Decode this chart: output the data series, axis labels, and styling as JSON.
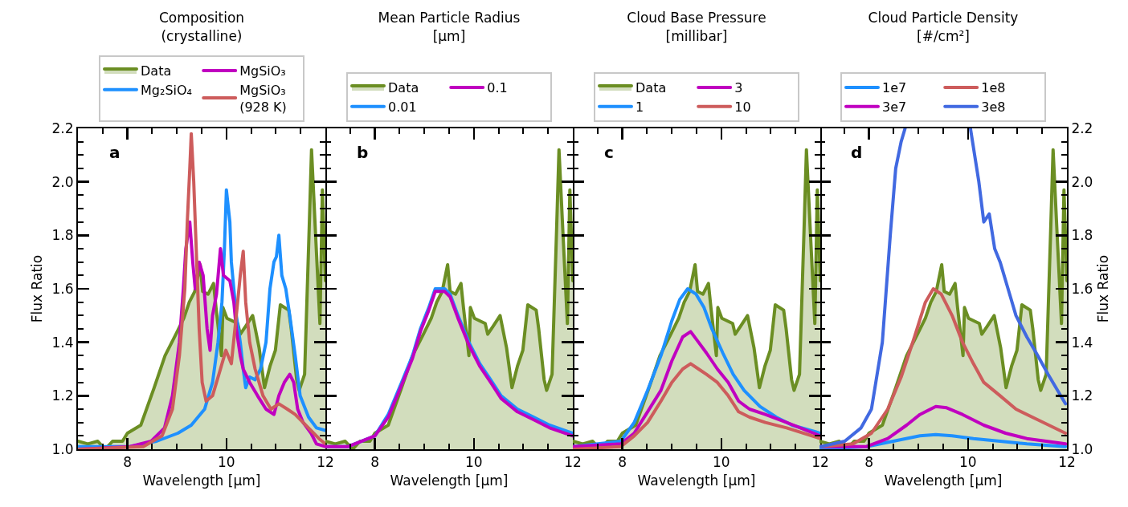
{
  "chart_data": [
    {
      "type": "line",
      "title": "Composition\n(crystalline)",
      "xlabel": "Wavelength [μm]",
      "ylabel": "Flux Ratio",
      "annotations": [
        "a"
      ],
      "legend": "top",
      "grid": false,
      "xlim": [
        7,
        12
      ],
      "ylim": [
        1,
        2.2
      ],
      "xticks": [
        {
          "value": 7.5,
          "label": null
        },
        8,
        {
          "value": 8.5,
          "label": null
        },
        {
          "value": 9,
          "label": null
        },
        {
          "value": 9.5,
          "label": null
        },
        10,
        {
          "value": 10.5,
          "label": null
        },
        {
          "value": 11,
          "label": null
        },
        {
          "value": 11.5,
          "label": null
        },
        12
      ],
      "yticks": [
        {
          "value": 1,
          "label": "1.0"
        },
        {
          "value": 1.05,
          "label": null
        },
        {
          "value": 1.1,
          "label": null
        },
        {
          "value": 1.15,
          "label": null
        },
        1.2,
        {
          "value": 1.25,
          "label": null
        },
        {
          "value": 1.3,
          "label": null
        },
        {
          "value": 1.35,
          "label": null
        },
        1.4,
        {
          "value": 1.45,
          "label": null
        },
        {
          "value": 1.5,
          "label": null
        },
        {
          "value": 1.55,
          "label": null
        },
        1.6,
        {
          "value": 1.65,
          "label": null
        },
        {
          "value": 1.7,
          "label": null
        },
        {
          "value": 1.75,
          "label": null
        },
        1.8,
        {
          "value": 1.85,
          "label": null
        },
        {
          "value": 1.9,
          "label": null
        },
        {
          "value": 1.95,
          "label": null
        },
        {
          "value": 2,
          "label": "2.0"
        },
        {
          "value": 2.05,
          "label": null
        },
        {
          "value": 2.1,
          "label": null
        },
        {
          "value": 2.15,
          "label": null
        },
        2.2
      ],
      "series": [
        {
          "name": "Data",
          "type": "area",
          "color": "#6b8e23",
          "x": [
            7.0,
            7.2,
            7.4,
            7.55,
            7.7,
            7.9,
            8.0,
            8.27,
            8.54,
            8.76,
            8.98,
            9.14,
            9.25,
            9.36,
            9.47,
            9.52,
            9.63,
            9.74,
            9.79,
            9.9,
            9.93,
            10.01,
            10.23,
            10.28,
            10.39,
            10.53,
            10.66,
            10.77,
            10.88,
            10.99,
            11.09,
            11.26,
            11.31,
            11.42,
            11.47,
            11.58,
            11.67,
            11.72,
            11.8,
            11.89,
            11.94,
            12.0
          ],
          "values": [
            1.03,
            1.02,
            1.03,
            1.0,
            1.03,
            1.03,
            1.06,
            1.09,
            1.23,
            1.35,
            1.43,
            1.49,
            1.55,
            1.59,
            1.69,
            1.59,
            1.58,
            1.62,
            1.53,
            1.35,
            1.53,
            1.49,
            1.47,
            1.43,
            1.46,
            1.5,
            1.38,
            1.23,
            1.31,
            1.37,
            1.54,
            1.52,
            1.45,
            1.26,
            1.22,
            1.28,
            1.81,
            2.12,
            1.81,
            1.47,
            1.97,
            1.63
          ]
        },
        {
          "name": "Mg₂SiO₄",
          "color": "#1e90ff",
          "x": [
            7.0,
            8.05,
            8.59,
            9.02,
            9.29,
            9.56,
            9.72,
            9.83,
            9.91,
            9.96,
            10.0,
            10.07,
            10.1,
            10.15,
            10.2,
            10.28,
            10.34,
            10.39,
            10.47,
            10.58,
            10.69,
            10.8,
            10.88,
            10.96,
            11.01,
            11.06,
            11.12,
            11.2,
            11.28,
            11.39,
            11.49,
            11.66,
            11.82,
            12.0
          ],
          "values": [
            1.01,
            1.01,
            1.03,
            1.06,
            1.09,
            1.15,
            1.25,
            1.4,
            1.55,
            1.75,
            1.97,
            1.85,
            1.7,
            1.6,
            1.5,
            1.4,
            1.3,
            1.23,
            1.27,
            1.26,
            1.3,
            1.4,
            1.6,
            1.7,
            1.72,
            1.8,
            1.65,
            1.6,
            1.5,
            1.35,
            1.2,
            1.12,
            1.08,
            1.07
          ]
        },
        {
          "name": "MgSiO₃",
          "color": "#c000c0",
          "x": [
            7.0,
            8.05,
            8.48,
            8.75,
            8.91,
            9.05,
            9.13,
            9.18,
            9.26,
            9.32,
            9.37,
            9.45,
            9.53,
            9.61,
            9.67,
            9.72,
            9.8,
            9.88,
            9.94,
            10.07,
            10.15,
            10.2,
            10.28,
            10.34,
            10.47,
            10.63,
            10.8,
            10.96,
            11.06,
            11.17,
            11.28,
            11.36,
            11.44,
            11.55,
            11.71,
            11.82,
            12.0
          ],
          "values": [
            1.0,
            1.01,
            1.03,
            1.08,
            1.2,
            1.4,
            1.6,
            1.75,
            1.85,
            1.7,
            1.6,
            1.7,
            1.65,
            1.45,
            1.37,
            1.5,
            1.58,
            1.75,
            1.65,
            1.63,
            1.55,
            1.45,
            1.35,
            1.3,
            1.25,
            1.2,
            1.15,
            1.13,
            1.2,
            1.25,
            1.28,
            1.25,
            1.15,
            1.1,
            1.06,
            1.02,
            1.01
          ]
        },
        {
          "name": "MgSiO₃\n(928 K)",
          "color": "#cd5c5c",
          "x": [
            7.0,
            8.32,
            8.7,
            8.91,
            9.05,
            9.16,
            9.21,
            9.26,
            9.29,
            9.34,
            9.4,
            9.45,
            9.51,
            9.59,
            9.72,
            9.88,
            9.99,
            10.1,
            10.2,
            10.28,
            10.34,
            10.39,
            10.47,
            10.58,
            10.74,
            10.9,
            11.06,
            11.23,
            11.39,
            11.55,
            11.71,
            11.87,
            12.0
          ],
          "values": [
            1.0,
            1.01,
            1.05,
            1.15,
            1.35,
            1.6,
            1.85,
            2.05,
            2.18,
            2.0,
            1.7,
            1.45,
            1.25,
            1.18,
            1.2,
            1.3,
            1.37,
            1.32,
            1.5,
            1.65,
            1.74,
            1.55,
            1.4,
            1.3,
            1.2,
            1.15,
            1.17,
            1.15,
            1.13,
            1.1,
            1.07,
            1.04,
            1.02
          ]
        }
      ]
    },
    {
      "type": "line",
      "title": "Mean Particle Radius\n[μm]",
      "xlabel": "Wavelength [μm]",
      "annotations": [
        "b"
      ],
      "legend": "top",
      "grid": false,
      "tick_labels": "x",
      "xlim": [
        7,
        12
      ],
      "ylim": [
        1,
        2.2
      ],
      "xticks": [
        {
          "value": 7.5,
          "label": null
        },
        8,
        {
          "value": 8.5,
          "label": null
        },
        {
          "value": 9,
          "label": null
        },
        {
          "value": 9.5,
          "label": null
        },
        10,
        {
          "value": 10.5,
          "label": null
        },
        {
          "value": 11,
          "label": null
        },
        {
          "value": 11.5,
          "label": null
        },
        12
      ],
      "yticks": [
        1,
        {
          "value": 1.05,
          "label": null
        },
        {
          "value": 1.1,
          "label": null
        },
        {
          "value": 1.15,
          "label": null
        },
        1.2,
        {
          "value": 1.25,
          "label": null
        },
        {
          "value": 1.3,
          "label": null
        },
        {
          "value": 1.35,
          "label": null
        },
        1.4,
        {
          "value": 1.45,
          "label": null
        },
        {
          "value": 1.5,
          "label": null
        },
        {
          "value": 1.55,
          "label": null
        },
        1.6,
        {
          "value": 1.65,
          "label": null
        },
        {
          "value": 1.7,
          "label": null
        },
        {
          "value": 1.75,
          "label": null
        },
        1.8,
        {
          "value": 1.85,
          "label": null
        },
        {
          "value": 1.9,
          "label": null
        },
        {
          "value": 1.95,
          "label": null
        },
        2,
        {
          "value": 2.05,
          "label": null
        },
        {
          "value": 2.1,
          "label": null
        },
        {
          "value": 2.15,
          "label": null
        },
        2.2
      ],
      "series": [
        {
          "name": "Data",
          "type": "area",
          "color": "#6b8e23",
          "x": [
            7.0,
            7.2,
            7.4,
            7.55,
            7.7,
            7.9,
            8.0,
            8.27,
            8.54,
            8.76,
            8.98,
            9.14,
            9.25,
            9.36,
            9.47,
            9.52,
            9.63,
            9.74,
            9.79,
            9.9,
            9.93,
            10.01,
            10.23,
            10.28,
            10.39,
            10.53,
            10.66,
            10.77,
            10.88,
            10.99,
            11.09,
            11.26,
            11.31,
            11.42,
            11.47,
            11.58,
            11.67,
            11.72,
            11.8,
            11.89,
            11.94,
            12.0
          ],
          "values": [
            1.03,
            1.02,
            1.03,
            1.0,
            1.03,
            1.03,
            1.06,
            1.09,
            1.23,
            1.35,
            1.43,
            1.49,
            1.55,
            1.59,
            1.69,
            1.59,
            1.58,
            1.62,
            1.53,
            1.35,
            1.53,
            1.49,
            1.47,
            1.43,
            1.46,
            1.5,
            1.38,
            1.23,
            1.31,
            1.37,
            1.54,
            1.52,
            1.45,
            1.26,
            1.22,
            1.28,
            1.81,
            2.12,
            1.81,
            1.47,
            1.97,
            1.63
          ]
        },
        {
          "name": "0.01",
          "color": "#1e90ff",
          "x": [
            7.0,
            7.46,
            8.0,
            8.27,
            8.54,
            8.76,
            8.92,
            9.09,
            9.22,
            9.41,
            9.52,
            9.68,
            9.9,
            10.12,
            10.34,
            10.55,
            10.88,
            11.21,
            11.53,
            12.0
          ],
          "values": [
            1.01,
            1.01,
            1.05,
            1.13,
            1.25,
            1.35,
            1.45,
            1.53,
            1.6,
            1.6,
            1.58,
            1.5,
            1.4,
            1.32,
            1.26,
            1.2,
            1.15,
            1.12,
            1.09,
            1.06
          ]
        },
        {
          "name": "0.1",
          "color": "#c000c0",
          "x": [
            7.0,
            7.46,
            8.0,
            8.27,
            8.54,
            8.76,
            8.92,
            9.09,
            9.22,
            9.41,
            9.52,
            9.68,
            9.9,
            10.12,
            10.34,
            10.55,
            10.88,
            11.21,
            11.53,
            12.0
          ],
          "values": [
            1.01,
            1.01,
            1.05,
            1.12,
            1.24,
            1.34,
            1.44,
            1.52,
            1.59,
            1.59,
            1.57,
            1.49,
            1.39,
            1.31,
            1.25,
            1.19,
            1.14,
            1.11,
            1.08,
            1.05
          ]
        }
      ]
    },
    {
      "type": "line",
      "title": "Cloud Base Pressure\n[millibar]",
      "xlabel": "Wavelength [μm]",
      "annotations": [
        "c"
      ],
      "legend": "top",
      "grid": false,
      "tick_labels": "x",
      "xlim": [
        7,
        12
      ],
      "ylim": [
        1,
        2.2
      ],
      "xticks": [
        {
          "value": 7.5,
          "label": null
        },
        8,
        {
          "value": 8.5,
          "label": null
        },
        {
          "value": 9,
          "label": null
        },
        {
          "value": 9.5,
          "label": null
        },
        10,
        {
          "value": 10.5,
          "label": null
        },
        {
          "value": 11,
          "label": null
        },
        {
          "value": 11.5,
          "label": null
        },
        12
      ],
      "yticks": [
        1,
        {
          "value": 1.05,
          "label": null
        },
        {
          "value": 1.1,
          "label": null
        },
        {
          "value": 1.15,
          "label": null
        },
        1.2,
        {
          "value": 1.25,
          "label": null
        },
        {
          "value": 1.3,
          "label": null
        },
        {
          "value": 1.35,
          "label": null
        },
        1.4,
        {
          "value": 1.45,
          "label": null
        },
        {
          "value": 1.5,
          "label": null
        },
        {
          "value": 1.55,
          "label": null
        },
        1.6,
        {
          "value": 1.65,
          "label": null
        },
        {
          "value": 1.7,
          "label": null
        },
        {
          "value": 1.75,
          "label": null
        },
        1.8,
        {
          "value": 1.85,
          "label": null
        },
        {
          "value": 1.9,
          "label": null
        },
        {
          "value": 1.95,
          "label": null
        },
        2,
        {
          "value": 2.05,
          "label": null
        },
        {
          "value": 2.1,
          "label": null
        },
        {
          "value": 2.15,
          "label": null
        },
        2.2
      ],
      "series": [
        {
          "name": "Data",
          "type": "area",
          "color": "#6b8e23",
          "x": [
            7.0,
            7.2,
            7.4,
            7.55,
            7.7,
            7.9,
            8.0,
            8.27,
            8.54,
            8.76,
            8.98,
            9.14,
            9.25,
            9.36,
            9.47,
            9.52,
            9.63,
            9.74,
            9.79,
            9.9,
            9.93,
            10.01,
            10.23,
            10.28,
            10.39,
            10.53,
            10.66,
            10.77,
            10.88,
            10.99,
            11.09,
            11.26,
            11.31,
            11.42,
            11.47,
            11.58,
            11.67,
            11.72,
            11.8,
            11.89,
            11.94,
            12.0
          ],
          "values": [
            1.03,
            1.02,
            1.03,
            1.0,
            1.03,
            1.03,
            1.06,
            1.09,
            1.23,
            1.35,
            1.43,
            1.49,
            1.55,
            1.59,
            1.69,
            1.59,
            1.58,
            1.62,
            1.53,
            1.35,
            1.53,
            1.49,
            1.47,
            1.43,
            1.46,
            1.5,
            1.38,
            1.23,
            1.31,
            1.37,
            1.54,
            1.52,
            1.45,
            1.26,
            1.22,
            1.28,
            1.81,
            2.12,
            1.81,
            1.47,
            1.97,
            1.63
          ]
        },
        {
          "name": "1",
          "color": "#1e90ff",
          "x": [
            7.0,
            7.97,
            8.24,
            8.51,
            8.78,
            9.0,
            9.16,
            9.32,
            9.49,
            9.65,
            9.81,
            10.03,
            10.24,
            10.46,
            10.78,
            11.11,
            11.43,
            12.0
          ],
          "values": [
            1.01,
            1.03,
            1.1,
            1.22,
            1.35,
            1.48,
            1.56,
            1.6,
            1.58,
            1.53,
            1.45,
            1.36,
            1.28,
            1.22,
            1.16,
            1.12,
            1.09,
            1.06
          ]
        },
        {
          "name": "3",
          "color": "#c000c0",
          "x": [
            7.0,
            7.97,
            8.24,
            8.51,
            8.78,
            9.0,
            9.22,
            9.38,
            9.54,
            9.7,
            9.92,
            10.14,
            10.35,
            10.57,
            10.89,
            11.32,
            12.0
          ],
          "values": [
            1.01,
            1.02,
            1.06,
            1.14,
            1.22,
            1.33,
            1.42,
            1.44,
            1.4,
            1.36,
            1.3,
            1.25,
            1.18,
            1.15,
            1.13,
            1.1,
            1.05
          ]
        },
        {
          "name": "10",
          "color": "#cd5c5c",
          "x": [
            7.0,
            7.97,
            8.24,
            8.51,
            8.78,
            9.0,
            9.22,
            9.38,
            9.54,
            9.7,
            9.92,
            10.14,
            10.35,
            10.57,
            10.89,
            11.32,
            12.0
          ],
          "values": [
            1.0,
            1.01,
            1.05,
            1.1,
            1.18,
            1.25,
            1.3,
            1.32,
            1.3,
            1.28,
            1.25,
            1.2,
            1.14,
            1.12,
            1.1,
            1.08,
            1.04
          ]
        }
      ]
    },
    {
      "type": "line",
      "title": "Cloud Particle Density\n[#/cm²]",
      "xlabel": "Wavelength [μm]",
      "y2label": "Flux Ratio",
      "annotations": [
        "d"
      ],
      "legend": "top",
      "grid": false,
      "xlim": [
        7,
        12
      ],
      "y2lim": [
        1,
        2.2
      ],
      "xticks": [
        {
          "value": 7.5,
          "label": null
        },
        8,
        {
          "value": 8.5,
          "label": null
        },
        {
          "value": 9,
          "label": null
        },
        {
          "value": 9.5,
          "label": null
        },
        10,
        {
          "value": 10.5,
          "label": null
        },
        {
          "value": 11,
          "label": null
        },
        {
          "value": 11.5,
          "label": null
        },
        12
      ],
      "y2ticks": [
        {
          "value": 1,
          "label": "1.0"
        },
        {
          "value": 1.05,
          "label": null
        },
        {
          "value": 1.1,
          "label": null
        },
        {
          "value": 1.15,
          "label": null
        },
        1.2,
        {
          "value": 1.25,
          "label": null
        },
        {
          "value": 1.3,
          "label": null
        },
        {
          "value": 1.35,
          "label": null
        },
        1.4,
        {
          "value": 1.45,
          "label": null
        },
        {
          "value": 1.5,
          "label": null
        },
        {
          "value": 1.55,
          "label": null
        },
        1.6,
        {
          "value": 1.65,
          "label": null
        },
        {
          "value": 1.7,
          "label": null
        },
        {
          "value": 1.75,
          "label": null
        },
        1.8,
        {
          "value": 1.85,
          "label": null
        },
        {
          "value": 1.9,
          "label": null
        },
        {
          "value": 1.95,
          "label": null
        },
        {
          "value": 2,
          "label": "2.0"
        },
        {
          "value": 2.05,
          "label": null
        },
        {
          "value": 2.1,
          "label": null
        },
        {
          "value": 2.15,
          "label": null
        },
        2.2
      ],
      "series": [
        {
          "type": "area",
          "axis": "y2",
          "color": "#6b8e23",
          "x": [
            7.0,
            7.2,
            7.4,
            7.55,
            7.7,
            7.9,
            8.0,
            8.27,
            8.54,
            8.76,
            8.98,
            9.14,
            9.25,
            9.36,
            9.47,
            9.52,
            9.63,
            9.74,
            9.79,
            9.9,
            9.93,
            10.01,
            10.23,
            10.28,
            10.39,
            10.53,
            10.66,
            10.77,
            10.88,
            10.99,
            11.09,
            11.26,
            11.31,
            11.42,
            11.47,
            11.58,
            11.67,
            11.72,
            11.8,
            11.89,
            11.94,
            12.0
          ],
          "values": [
            1.03,
            1.02,
            1.03,
            1.0,
            1.03,
            1.03,
            1.06,
            1.09,
            1.23,
            1.35,
            1.43,
            1.49,
            1.55,
            1.59,
            1.69,
            1.59,
            1.58,
            1.62,
            1.53,
            1.35,
            1.53,
            1.49,
            1.47,
            1.43,
            1.46,
            1.5,
            1.38,
            1.23,
            1.31,
            1.37,
            1.54,
            1.52,
            1.45,
            1.26,
            1.22,
            1.28,
            1.81,
            2.12,
            1.81,
            1.47,
            1.97,
            1.63
          ]
        },
        {
          "name": "1e7",
          "axis": "y2",
          "color": "#1e90ff",
          "x": [
            7.03,
            7.95,
            8.49,
            9.03,
            9.35,
            9.68,
            10.11,
            10.65,
            11.19,
            11.97
          ],
          "values": [
            1.0,
            1.01,
            1.03,
            1.05,
            1.055,
            1.05,
            1.04,
            1.03,
            1.02,
            1.01
          ]
        },
        {
          "name": "3e7",
          "axis": "y2",
          "color": "#c000c0",
          "x": [
            7.03,
            7.95,
            8.38,
            8.76,
            9.03,
            9.35,
            9.57,
            9.89,
            10.32,
            10.76,
            11.19,
            11.97
          ],
          "values": [
            1.01,
            1.01,
            1.04,
            1.09,
            1.13,
            1.16,
            1.155,
            1.13,
            1.09,
            1.06,
            1.04,
            1.02
          ]
        },
        {
          "name": "1e8",
          "axis": "y2",
          "color": "#cd5c5c",
          "x": [
            7.03,
            7.68,
            8.05,
            8.38,
            8.65,
            8.92,
            9.14,
            9.3,
            9.46,
            9.68,
            9.89,
            10.11,
            10.32,
            10.65,
            10.97,
            11.41,
            11.97
          ],
          "values": [
            1.01,
            1.02,
            1.06,
            1.15,
            1.27,
            1.42,
            1.55,
            1.6,
            1.58,
            1.5,
            1.4,
            1.32,
            1.25,
            1.2,
            1.15,
            1.11,
            1.06
          ]
        },
        {
          "name": "3e8",
          "axis": "y2",
          "color": "#4169e1",
          "x": [
            7.03,
            7.51,
            7.84,
            8.05,
            8.27,
            8.43,
            8.54,
            8.65,
            8.73,
            9.4,
            10.05,
            10.22,
            10.32,
            10.43,
            10.54,
            10.65,
            10.81,
            10.97,
            11.19,
            11.41,
            11.62,
            11.97
          ],
          "values": [
            1.01,
            1.03,
            1.08,
            1.15,
            1.4,
            1.8,
            2.05,
            2.15,
            2.2,
            null,
            2.2,
            2.0,
            1.85,
            1.88,
            1.75,
            1.7,
            1.6,
            1.5,
            1.42,
            1.35,
            1.28,
            1.17
          ]
        }
      ]
    }
  ]
}
